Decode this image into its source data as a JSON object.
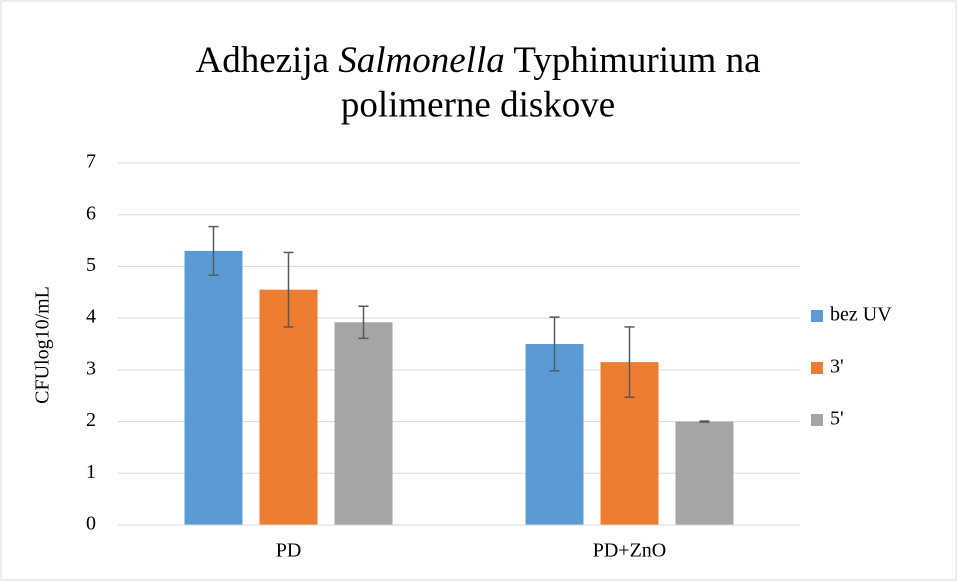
{
  "chart_data": {
    "type": "bar",
    "title": [
      "Adhezija",
      "Salmonella",
      "Typhimurium na",
      "polimerne diskove"
    ],
    "y_label": "CFUlog10/mL",
    "categories": [
      "PD",
      "PD+ZnO"
    ],
    "series": [
      {
        "name": "bez UV",
        "color": "#5b9bd5",
        "values": [
          5.3,
          3.5
        ],
        "errors": [
          0.47,
          0.52
        ]
      },
      {
        "name": "3'",
        "color": "#ed7d31",
        "values": [
          4.55,
          3.15
        ],
        "errors": [
          0.72,
          0.68
        ]
      },
      {
        "name": "5'",
        "color": "#a5a5a5",
        "values": [
          3.92,
          2.0
        ],
        "errors": [
          0.31,
          0.01
        ]
      }
    ],
    "ylim": [
      0,
      7
    ],
    "yticks": [
      0,
      1,
      2,
      3,
      4,
      5,
      6,
      7
    ],
    "grid": true,
    "legend": "right"
  }
}
